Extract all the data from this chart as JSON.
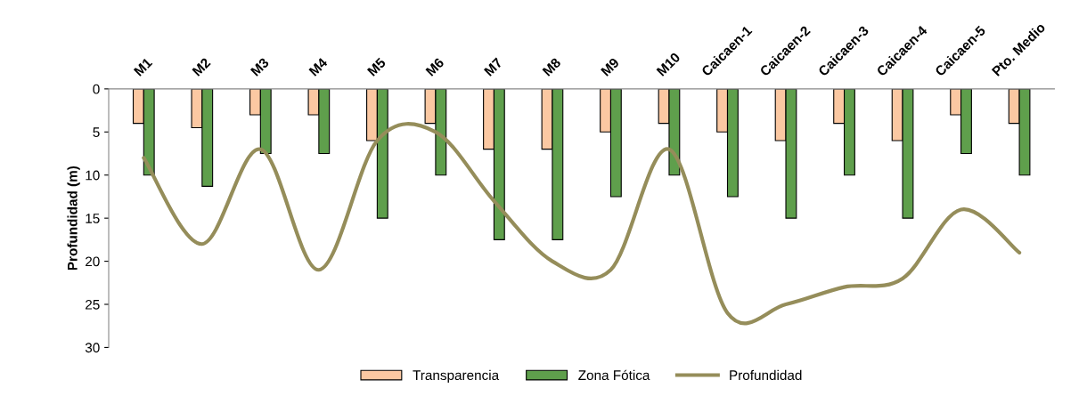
{
  "chart_data": {
    "type": "bar",
    "ylabel": "Profundidad (m)",
    "categories": [
      "M1",
      "M2",
      "M3",
      "M4",
      "M5",
      "M6",
      "M7",
      "M8",
      "M9",
      "M10",
      "Caicaen-1",
      "Caicaen-2",
      "Caicaen-3",
      "Caicaen-4",
      "Caicaen-5",
      "Pto. Medio"
    ],
    "series": [
      {
        "name": "Transparencia",
        "color": "#fbc8a2",
        "values": [
          4,
          4.5,
          3,
          3,
          6,
          4,
          7,
          7,
          5,
          4,
          5,
          6,
          4,
          6,
          3,
          4
        ]
      },
      {
        "name": "Zona Fótica",
        "color": "#5f9f4c",
        "values": [
          10,
          11.3,
          7.5,
          7.5,
          15,
          10,
          17.5,
          17.5,
          12.5,
          10,
          12.5,
          15,
          10,
          15,
          7.5,
          10
        ]
      },
      {
        "name": "Profundidad",
        "type": "line",
        "color": "#958d5a",
        "values": [
          8,
          18,
          7,
          21,
          6,
          5,
          13,
          20,
          21,
          7,
          26,
          25,
          23,
          22,
          14,
          19
        ]
      }
    ],
    "ylim": [
      30,
      0
    ],
    "yticks": [
      0,
      5,
      10,
      15,
      20,
      25,
      30
    ],
    "grid": false,
    "legend": "bottom"
  }
}
